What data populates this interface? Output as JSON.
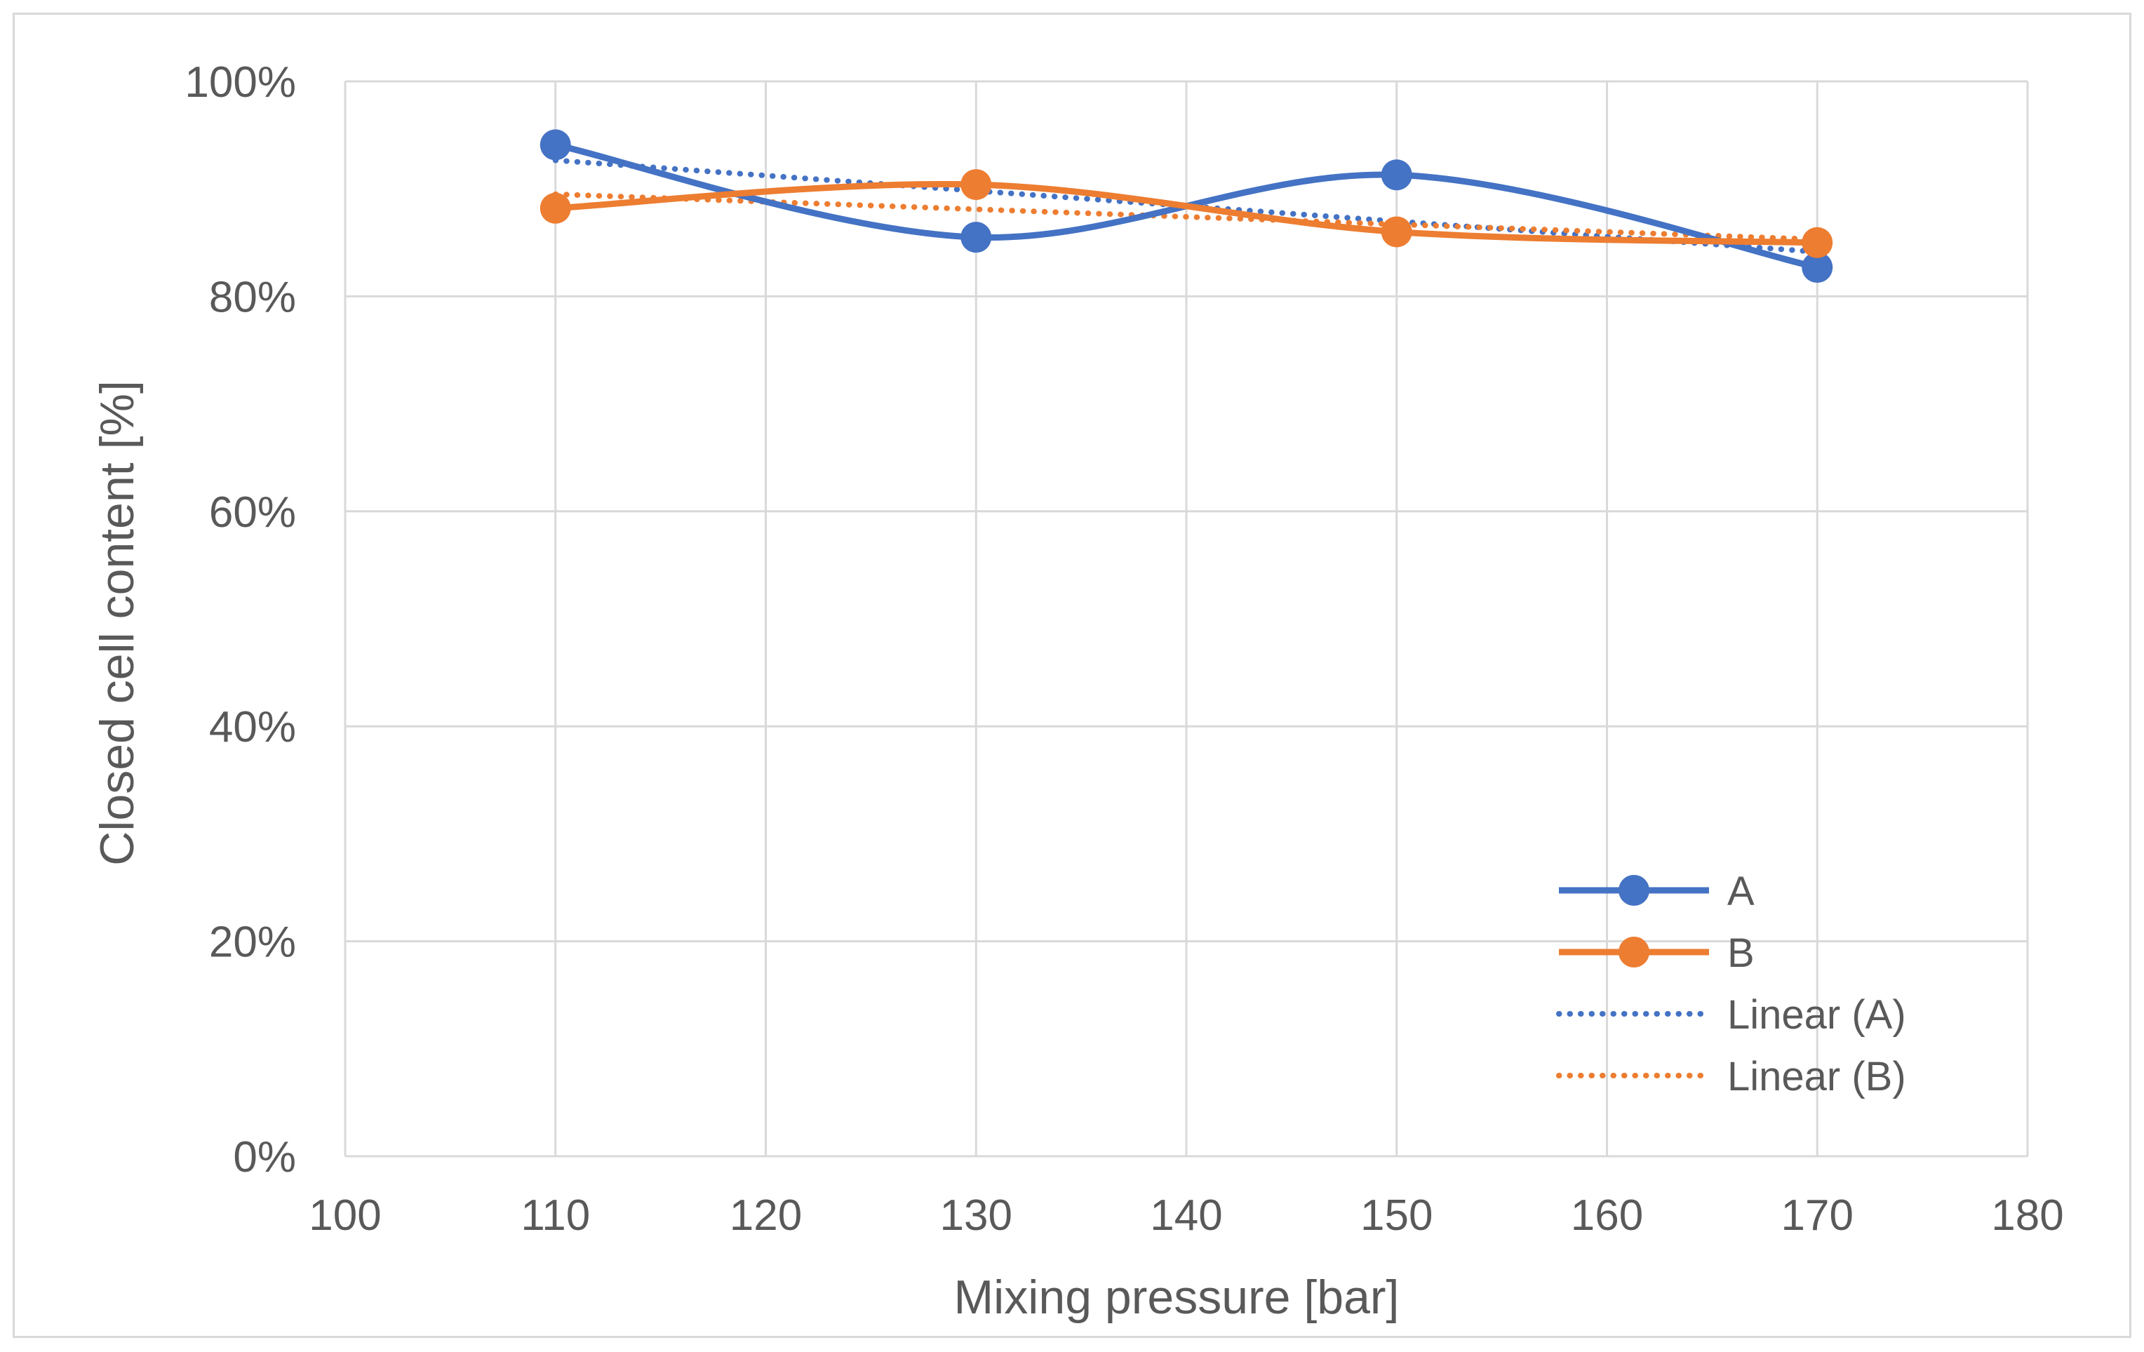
{
  "chart_data": {
    "type": "line",
    "title": "",
    "xlabel": "Mixing pressure [bar]",
    "ylabel": "Closed cell content [%]",
    "xlim": [
      100,
      180
    ],
    "ylim": [
      0,
      1
    ],
    "x_ticks": [
      100,
      110,
      120,
      130,
      140,
      150,
      160,
      170,
      180
    ],
    "x_tick_labels": [
      "100",
      "110",
      "120",
      "130",
      "140",
      "150",
      "160",
      "170",
      "180"
    ],
    "y_ticks": [
      0,
      0.2,
      0.4,
      0.6,
      0.8,
      1.0
    ],
    "y_tick_labels": [
      "0%",
      "20%",
      "40%",
      "60%",
      "80%",
      "100%"
    ],
    "grid": true,
    "legend_position": "bottom-right",
    "x": [
      110,
      130,
      150,
      170
    ],
    "series": [
      {
        "name": "A",
        "values": [
          0.941,
          0.855,
          0.913,
          0.827
        ],
        "color": "#4472C4",
        "style": "smooth-line-markers"
      },
      {
        "name": "B",
        "values": [
          0.882,
          0.904,
          0.86,
          0.85
        ],
        "color": "#ED7D31",
        "style": "smooth-line-markers"
      }
    ],
    "trendlines": [
      {
        "name": "Linear (A)",
        "of": "A",
        "color": "#4472C4",
        "style": "dotted"
      },
      {
        "name": "Linear (B)",
        "of": "B",
        "color": "#ED7D31",
        "style": "dotted"
      }
    ]
  }
}
